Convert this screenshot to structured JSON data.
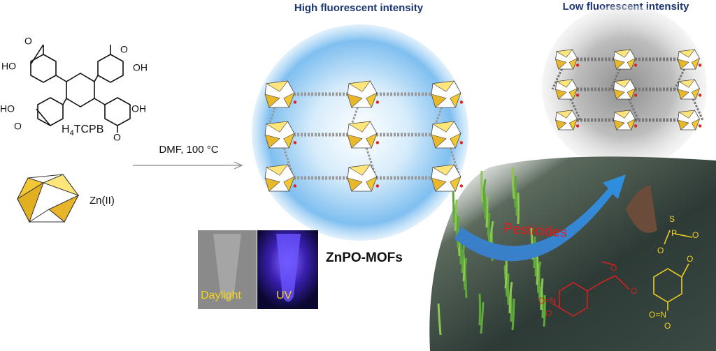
{
  "header": {
    "left_title": "High fluorescent intensity",
    "right_title": "Low fluorescent intensity"
  },
  "ligand": {
    "name": {
      "prefix": "H",
      "subscript": "4",
      "suffix": "TCPB"
    },
    "atoms": [
      "HO",
      "OH",
      "HO",
      "OH",
      "O",
      "O",
      "O",
      "O"
    ]
  },
  "metal": {
    "label": "Zn(II)"
  },
  "reaction": {
    "condition": "DMF, 100 °C"
  },
  "product": {
    "label": "ZnPO-MOFs",
    "photo_left": "Daylight",
    "photo_right": "UV"
  },
  "analyte": {
    "label": "Pesticides",
    "atoms": [
      "S",
      "P",
      "O",
      "O",
      "O",
      "O=N",
      "O",
      "O",
      "O=N",
      "O",
      "O"
    ]
  }
}
